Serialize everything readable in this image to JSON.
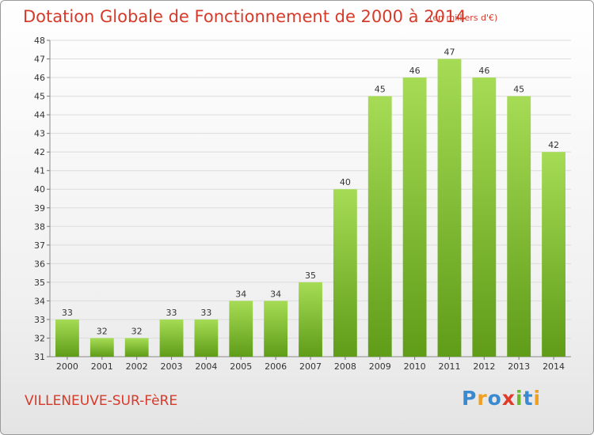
{
  "header": {
    "title": "Dotation Globale de Fonctionnement de 2000 à 2014",
    "subtitle": "(en milliers d'€)"
  },
  "footer": {
    "city": "VILLENEUVE-SUR-FèRE",
    "logo": {
      "p": "P",
      "r": "r",
      "o": "o",
      "x": "x",
      "i1": "i",
      "t": "t",
      "i2": "i"
    }
  },
  "colors": {
    "title": "#d63a2a",
    "bar_light": "#a6dc55",
    "bar_dark": "#5f9c18"
  },
  "chart_data": {
    "type": "bar",
    "categories": [
      "2000",
      "2001",
      "2002",
      "2003",
      "2004",
      "2005",
      "2006",
      "2007",
      "2008",
      "2009",
      "2010",
      "2011",
      "2012",
      "2013",
      "2014"
    ],
    "values": [
      33,
      32,
      32,
      33,
      33,
      34,
      34,
      35,
      40,
      45,
      46,
      47,
      46,
      45,
      42
    ],
    "ylim": [
      31,
      48
    ],
    "yticks": [
      31,
      32,
      33,
      34,
      35,
      36,
      37,
      38,
      39,
      40,
      41,
      42,
      43,
      44,
      45,
      46,
      47,
      48
    ],
    "grid": true,
    "legend": "none"
  }
}
